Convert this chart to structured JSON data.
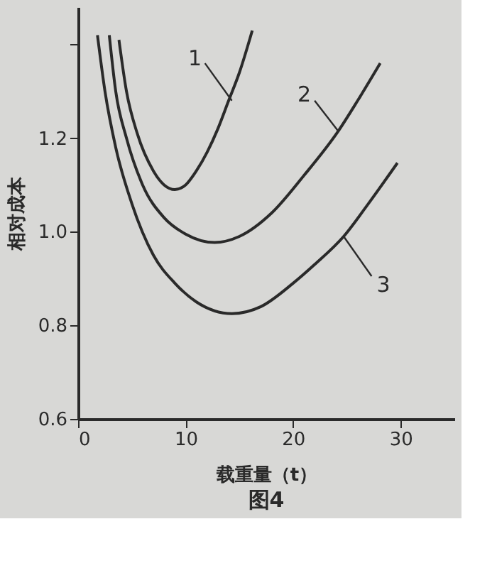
{
  "chart_data": {
    "type": "line",
    "title": "图4",
    "xlabel": "载重量（t）",
    "ylabel": "相对成本",
    "xlim": [
      0,
      35
    ],
    "xticks": [
      0,
      10,
      20,
      30
    ],
    "ylim": [
      0.6,
      1.48
    ],
    "yticks": [
      {
        "value": 0.6,
        "label": "0.6"
      },
      {
        "value": 0.8,
        "label": "0.8"
      },
      {
        "value": 1.0,
        "label": "1.0"
      },
      {
        "value": 1.2,
        "label": "1.2"
      },
      {
        "value": 1.4,
        "label": null
      }
    ],
    "grid": false,
    "legend": false,
    "marker": "none",
    "line_style": "solid",
    "series": [
      {
        "color": "#2a2a2a",
        "x": [
          3.8,
          4.5,
          5.5,
          7,
          8,
          9,
          10,
          11,
          12,
          13,
          14,
          15,
          16.2
        ],
        "values": [
          1.41,
          1.3,
          1.21,
          1.13,
          1.1,
          1.09,
          1.1,
          1.13,
          1.17,
          1.22,
          1.28,
          1.34,
          1.43
        ]
      },
      {
        "color": "#2a2a2a",
        "x": [
          2.9,
          3.5,
          4.5,
          6,
          8,
          10,
          12.7,
          15,
          18,
          21,
          24.2,
          26,
          28.1
        ],
        "values": [
          1.42,
          1.3,
          1.2,
          1.1,
          1.03,
          0.995,
          0.977,
          0.99,
          1.04,
          1.12,
          1.215,
          1.28,
          1.36
        ]
      },
      {
        "color": "#2a2a2a",
        "x": [
          1.8,
          2.5,
          3.5,
          5,
          7,
          9,
          11,
          14.3,
          17,
          20,
          22,
          24.7,
          27,
          29.7
        ],
        "values": [
          1.42,
          1.3,
          1.18,
          1.06,
          0.95,
          0.89,
          0.85,
          0.825,
          0.84,
          0.89,
          0.93,
          0.99,
          1.06,
          1.147
        ]
      }
    ],
    "annotations": [
      {
        "text": "1",
        "x": 14.3,
        "y": 1.28
      },
      {
        "text": "2",
        "x": 24.2,
        "y": 1.215
      },
      {
        "text": "3",
        "x": 24.7,
        "y": 0.99
      }
    ]
  }
}
